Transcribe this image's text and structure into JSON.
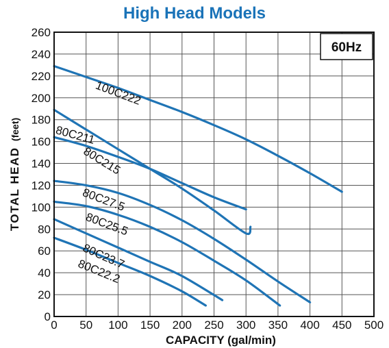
{
  "colors": {
    "title": "#1a73b8",
    "curve": "#1f74b5",
    "grid": "#555555",
    "axis": "#111111"
  },
  "chart_data": {
    "type": "line",
    "title": "High Head Models",
    "xlabel": "CAPACITY (gal/min)",
    "ylabel": "TOTAL HEAD (feet)",
    "ylabel_main": "TOTAL HEAD",
    "ylabel_unit": "(feet)",
    "annotation": "60Hz",
    "xlim": [
      0,
      500
    ],
    "ylim": [
      0,
      260
    ],
    "xticks": [
      0,
      50,
      100,
      150,
      200,
      250,
      300,
      350,
      400,
      450,
      500
    ],
    "yticks": [
      0,
      20,
      40,
      60,
      80,
      100,
      120,
      140,
      160,
      180,
      200,
      220,
      240,
      260
    ],
    "grid": true,
    "series": [
      {
        "name": "100C222",
        "x": [
          0,
          50,
          100,
          150,
          200,
          250,
          300,
          350,
          400,
          450
        ],
        "y": [
          229,
          219,
          209,
          198,
          187,
          175,
          162,
          147,
          131,
          114
        ]
      },
      {
        "name": "80C215",
        "x": [
          0,
          50,
          100,
          150,
          200,
          250,
          300,
          307
        ],
        "y": [
          189,
          171,
          153,
          135,
          117,
          97,
          76,
          82
        ]
      },
      {
        "name": "80C211",
        "x": [
          0,
          50,
          100,
          150,
          200,
          250,
          300
        ],
        "y": [
          164,
          156,
          146,
          135,
          122,
          109,
          98
        ]
      },
      {
        "name": "80C27.5",
        "x": [
          0,
          50,
          100,
          150,
          200,
          250,
          300,
          350,
          400
        ],
        "y": [
          124,
          120,
          113,
          102,
          88,
          71,
          52,
          32,
          13
        ]
      },
      {
        "name": "80C25.5",
        "x": [
          0,
          50,
          100,
          150,
          200,
          250,
          300,
          353
        ],
        "y": [
          105,
          101,
          93,
          82,
          68,
          51,
          33,
          10
        ]
      },
      {
        "name": "80C23.7",
        "x": [
          0,
          50,
          100,
          150,
          200,
          263
        ],
        "y": [
          89,
          76,
          63,
          50,
          37,
          15
        ]
      },
      {
        "name": "80C22.2",
        "x": [
          0,
          50,
          100,
          150,
          200,
          237
        ],
        "y": [
          72,
          61,
          49,
          37,
          23,
          10
        ]
      }
    ]
  }
}
